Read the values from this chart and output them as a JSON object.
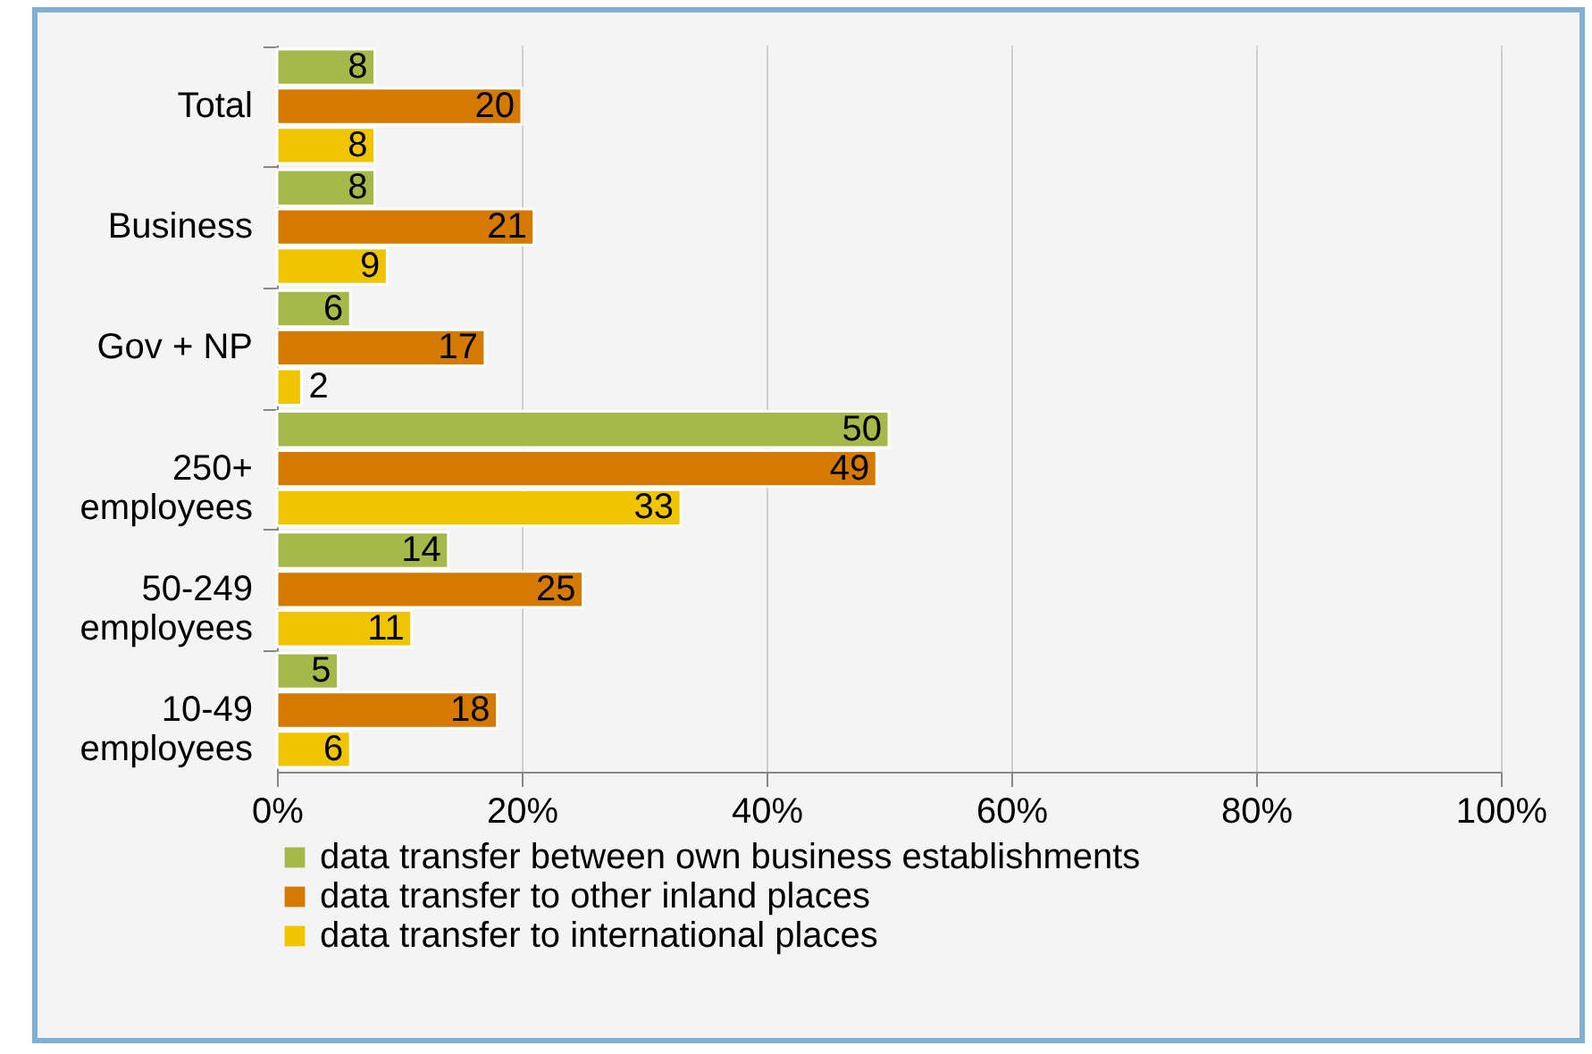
{
  "chart_data": {
    "type": "bar",
    "orientation": "horizontal",
    "categories": [
      "Total",
      "Business",
      "Gov + NP",
      "250+\nemployees",
      "50-249\nemployees",
      "10-49\nemployees"
    ],
    "series": [
      {
        "name": "data transfer between own business establishments",
        "color": "#a5b94a",
        "values": [
          8,
          8,
          6,
          50,
          14,
          5
        ]
      },
      {
        "name": "data transfer to other inland places",
        "color": "#d57a00",
        "values": [
          20,
          21,
          17,
          49,
          25,
          18
        ]
      },
      {
        "name": "data transfer to international places",
        "color": "#f0c500",
        "values": [
          8,
          9,
          2,
          33,
          11,
          6
        ]
      }
    ],
    "xlim": [
      0,
      100
    ],
    "xticks": [
      {
        "value": 0,
        "label": "0%"
      },
      {
        "value": 20,
        "label": "20%"
      },
      {
        "value": 40,
        "label": "40%"
      },
      {
        "value": 60,
        "label": "60%"
      },
      {
        "value": 80,
        "label": "80%"
      },
      {
        "value": 100,
        "label": "100%"
      }
    ],
    "data_labels": true,
    "grid": "x",
    "legend": "bottom"
  }
}
